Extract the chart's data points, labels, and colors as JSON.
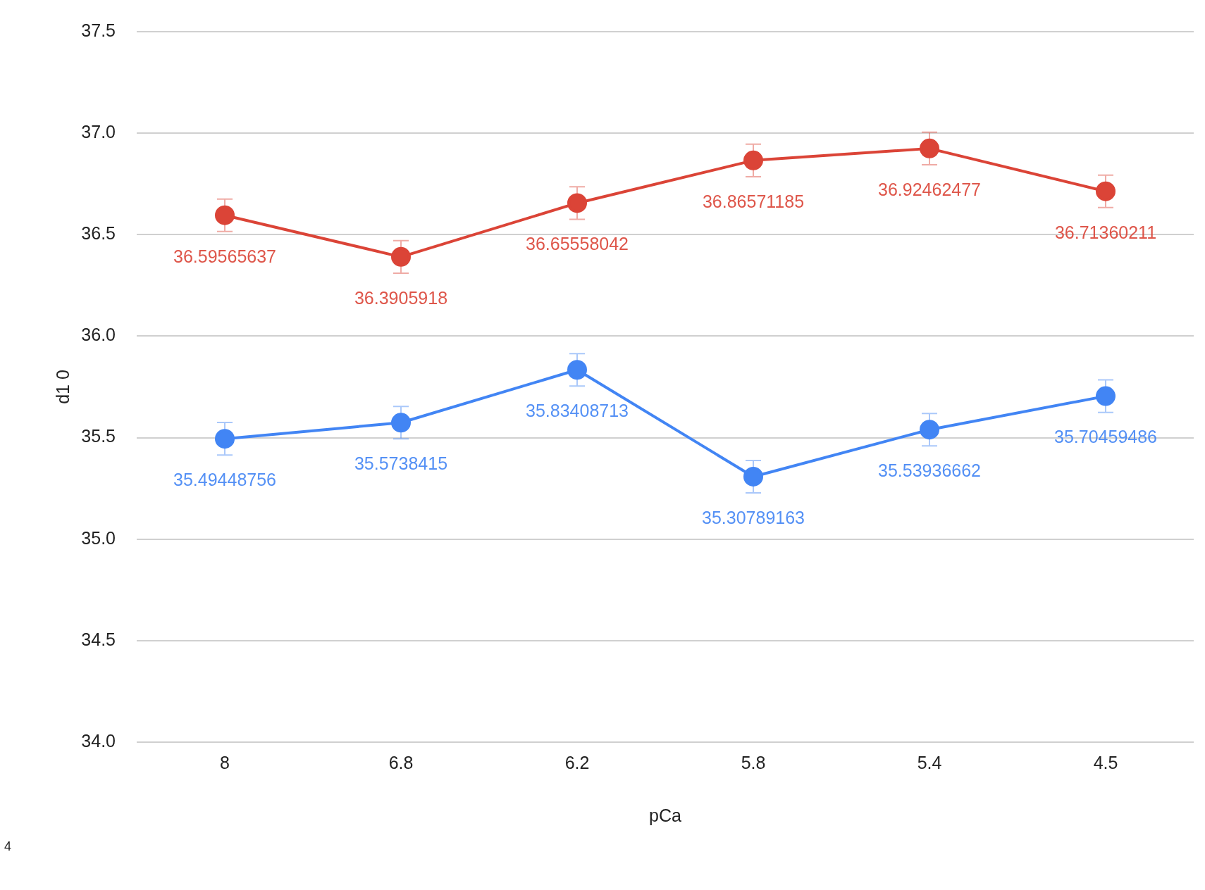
{
  "chart_data": {
    "type": "line",
    "xlabel": "pCa",
    "ylabel": "d1 0",
    "categories": [
      "8",
      "6.8",
      "6.2",
      "5.8",
      "5.4",
      "4.5"
    ],
    "series": [
      {
        "color": "#db4437",
        "values": [
          36.59565637,
          36.3905918,
          36.65558042,
          36.86571185,
          36.92462477,
          36.71360211
        ],
        "errors": [
          0.08,
          0.08,
          0.08,
          0.08,
          0.08,
          0.08
        ]
      },
      {
        "color": "#4285f4",
        "values": [
          35.49448756,
          35.5738415,
          35.83408713,
          35.30789163,
          35.53936662,
          35.70459486
        ],
        "errors": [
          0.08,
          0.08,
          0.08,
          0.08,
          0.08,
          0.08
        ]
      }
    ],
    "ylim": [
      34,
      37.5
    ],
    "yticks": [
      {
        "value": 34,
        "label": "34.0"
      },
      {
        "value": 34.5,
        "label": "34.5"
      },
      {
        "value": 35,
        "label": "35.0"
      },
      {
        "value": 35.5,
        "label": "35.5"
      },
      {
        "value": 36,
        "label": "36.0"
      },
      {
        "value": 36.5,
        "label": "36.5"
      },
      {
        "value": 37,
        "label": "37.0"
      },
      {
        "value": 37.5,
        "label": "37.5"
      }
    ],
    "grid": "y",
    "legend": false,
    "marker": "circle",
    "line_style": "solid",
    "data_labels": true,
    "annotations": [
      "4"
    ]
  }
}
